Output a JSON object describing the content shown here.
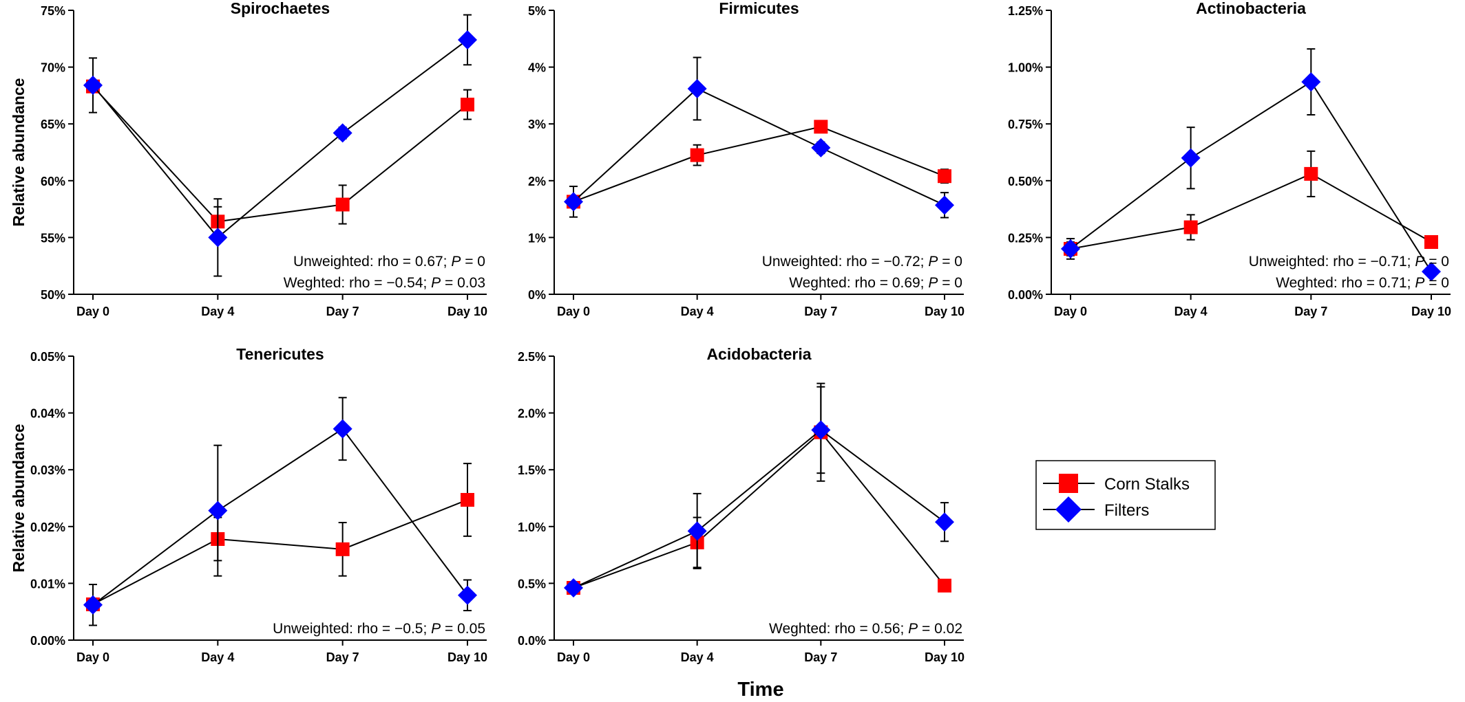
{
  "figure": {
    "xlabel": "Time",
    "ylabel": "Relative abundance"
  },
  "legend": {
    "items": [
      {
        "label": "Corn Stalks",
        "color": "#ff0000",
        "marker": "square"
      },
      {
        "label": "Filters",
        "color": "#0000ff",
        "marker": "diamond"
      }
    ]
  },
  "chart_data": [
    {
      "type": "line",
      "title": "Spirochaetes",
      "ylabel": "Relative abundance",
      "categories": [
        "Day 0",
        "Day 4",
        "Day 7",
        "Day 10"
      ],
      "yticks": [
        "50%",
        "55%",
        "60%",
        "65%",
        "70%",
        "75%"
      ],
      "ylim": [
        50,
        75
      ],
      "series": [
        {
          "name": "Corn Stalks",
          "values": [
            68.3,
            56.4,
            57.9,
            66.7
          ],
          "errors": [
            0.5,
            1.3,
            1.7,
            1.3
          ]
        },
        {
          "name": "Filters",
          "values": [
            68.4,
            55.0,
            64.2,
            72.4
          ],
          "errors": [
            2.4,
            3.4,
            0.5,
            2.2
          ]
        }
      ],
      "annotations": [
        {
          "text": "Unweighted: rho = 0.67; ",
          "p": "P",
          "rest": " = 0"
        },
        {
          "text": "Weghted: rho = −0.54; ",
          "p": "P",
          "rest": " = 0.03"
        }
      ]
    },
    {
      "type": "line",
      "title": "Firmicutes",
      "ylabel": "",
      "categories": [
        "Day 0",
        "Day 4",
        "Day 7",
        "Day 10"
      ],
      "yticks": [
        "0%",
        "1%",
        "2%",
        "3%",
        "4%",
        "5%"
      ],
      "ylim": [
        0,
        5
      ],
      "series": [
        {
          "name": "Corn Stalks",
          "values": [
            1.63,
            2.45,
            2.95,
            2.08
          ],
          "errors": [
            0.1,
            0.18,
            0.1,
            0.12
          ]
        },
        {
          "name": "Filters",
          "values": [
            1.63,
            3.62,
            2.58,
            1.57
          ],
          "errors": [
            0.27,
            0.55,
            0.1,
            0.22
          ]
        }
      ],
      "annotations": [
        {
          "text": "Unweighted: rho = −0.72; ",
          "p": "P",
          "rest": " = 0"
        },
        {
          "text": "Weghted: rho = 0.69; ",
          "p": "P",
          "rest": " = 0"
        }
      ]
    },
    {
      "type": "line",
      "title": "Actinobacteria",
      "ylabel": "",
      "categories": [
        "Day 0",
        "Day 4",
        "Day 7",
        "Day 10"
      ],
      "yticks": [
        "0.00%",
        "0.25%",
        "0.50%",
        "0.75%",
        "1.00%",
        "1.25%"
      ],
      "ylim": [
        0,
        1.25
      ],
      "series": [
        {
          "name": "Corn Stalks",
          "values": [
            0.2,
            0.295,
            0.53,
            0.23
          ],
          "errors": [
            0.03,
            0.055,
            0.1,
            0.02
          ]
        },
        {
          "name": "Filters",
          "values": [
            0.2,
            0.6,
            0.935,
            0.1
          ],
          "errors": [
            0.045,
            0.135,
            0.145,
            0.02
          ]
        }
      ],
      "annotations": [
        {
          "text": "Unweighted: rho = −0.71; ",
          "p": "P",
          "rest": " = 0"
        },
        {
          "text": "Weghted: rho = 0.71; ",
          "p": "P",
          "rest": " = 0"
        }
      ]
    },
    {
      "type": "line",
      "title": "Tenericutes",
      "ylabel": "Relative abundance",
      "categories": [
        "Day 0",
        "Day 4",
        "Day 7",
        "Day 10"
      ],
      "yticks": [
        "0.00%",
        "0.01%",
        "0.02%",
        "0.03%",
        "0.04%",
        "0.05%"
      ],
      "ylim": [
        0,
        0.05
      ],
      "series": [
        {
          "name": "Corn Stalks",
          "values": [
            0.0063,
            0.0178,
            0.016,
            0.0247
          ],
          "errors": [
            0.0005,
            0.0038,
            0.0047,
            0.0064
          ]
        },
        {
          "name": "Filters",
          "values": [
            0.0062,
            0.0228,
            0.0372,
            0.0079
          ],
          "errors": [
            0.0036,
            0.0115,
            0.0055,
            0.0027
          ]
        }
      ],
      "annotations": [
        {
          "text": "Unweighted: rho = −0.5; ",
          "p": "P",
          "rest": " = 0.05"
        }
      ]
    },
    {
      "type": "line",
      "title": "Acidobacteria",
      "ylabel": "",
      "categories": [
        "Day 0",
        "Day 4",
        "Day 7",
        "Day 10"
      ],
      "yticks": [
        "0.0%",
        "0.5%",
        "1.0%",
        "1.5%",
        "2.0%",
        "2.5%"
      ],
      "ylim": [
        0,
        2.5
      ],
      "series": [
        {
          "name": "Corn Stalks",
          "values": [
            0.46,
            0.86,
            1.83,
            0.48
          ],
          "errors": [
            0.04,
            0.22,
            0.43,
            0.05
          ]
        },
        {
          "name": "Filters",
          "values": [
            0.46,
            0.96,
            1.85,
            1.04
          ],
          "errors": [
            0.04,
            0.33,
            0.38,
            0.17
          ]
        }
      ],
      "annotations": [
        {
          "text": "Weghted: rho = 0.56; ",
          "p": "P",
          "rest": " = 0.02"
        }
      ]
    }
  ]
}
